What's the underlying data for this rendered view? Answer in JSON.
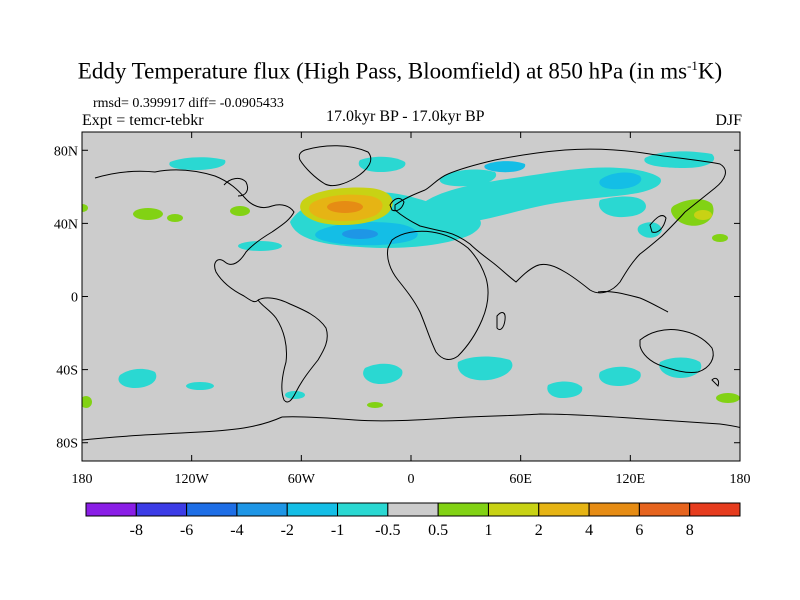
{
  "title": {
    "main": "Eddy Temperature flux (High Pass, Bloomfield) at 850 hPa (in ms",
    "sup": "-1",
    "end": "K)"
  },
  "stats": {
    "rmsd_text": "rmsd= 0.399917 diff= -0.0905433"
  },
  "expt_label": "Expt = temcr-tebkr",
  "period_label": "17.0kyr BP - 17.0kyr BP",
  "season_label": "DJF",
  "axes": {
    "y_ticks": [
      {
        "lat": 80,
        "label": "80N"
      },
      {
        "lat": 40,
        "label": "40N"
      },
      {
        "lat": 0,
        "label": "0"
      },
      {
        "lat": -40,
        "label": "40S"
      },
      {
        "lat": -80,
        "label": "80S"
      }
    ],
    "x_ticks": [
      {
        "lon": -180,
        "label": "180"
      },
      {
        "lon": -120,
        "label": "120W"
      },
      {
        "lon": -60,
        "label": "60W"
      },
      {
        "lon": 0,
        "label": "0"
      },
      {
        "lon": 60,
        "label": "60E"
      },
      {
        "lon": 120,
        "label": "120E"
      },
      {
        "lon": 180,
        "label": "180"
      }
    ]
  },
  "colorbar": {
    "colors": [
      "#8a1ee6",
      "#3c3ce6",
      "#1e6ee6",
      "#1e96e6",
      "#14bee6",
      "#2ad8d2",
      "#cccccc",
      "#82d214",
      "#c8d214",
      "#e6b414",
      "#e68c14",
      "#e6641e",
      "#e63c1e"
    ],
    "labels": [
      "-8",
      "-6",
      "-4",
      "-2",
      "-1",
      "-0.5",
      "0.5",
      "1",
      "2",
      "4",
      "6",
      "8"
    ]
  },
  "chart_data": {
    "type": "heatmap",
    "map": "world map, equidistant cylindrical projection",
    "variable": "Eddy Temperature flux (High Pass, Bloomfield)",
    "level": "850 hPa",
    "units": "ms-1K",
    "xlim": [
      -180,
      180
    ],
    "ylim": [
      -90,
      90
    ],
    "contour_levels": [
      -8,
      -6,
      -4,
      -2,
      -1,
      -0.5,
      0.5,
      1,
      2,
      4,
      6,
      8
    ],
    "background_value_range": [
      -0.5,
      0.5
    ],
    "features": [
      {
        "region": "Western North Atlantic",
        "lon": -45,
        "lat": 46,
        "value_range": [
          2,
          6
        ]
      },
      {
        "region": "Central North Atlantic",
        "lon": -30,
        "lat": 38,
        "value_range": [
          -2,
          -1
        ]
      },
      {
        "region": "Eurasia / Scandinavia band",
        "lon": 40,
        "lat": 57,
        "value_range": [
          -1,
          -0.5
        ]
      },
      {
        "region": "Greenland Sea",
        "lon": -15,
        "lat": 75,
        "value_range": [
          -1,
          -0.5
        ]
      },
      {
        "region": "Arctic (East Siberian)",
        "lon": 110,
        "lat": 78,
        "value_range": [
          -1,
          -0.5
        ]
      },
      {
        "region": "NW Pacific / Kamchatka",
        "lon": 155,
        "lat": 43,
        "value_range": [
          1,
          2
        ]
      },
      {
        "region": "North Pacific (east)",
        "lon": -160,
        "lat": 41,
        "value_range": [
          0.5,
          1
        ]
      },
      {
        "region": "South Atlantic",
        "lon": 5,
        "lat": -38,
        "value_range": [
          -1,
          -0.5
        ]
      },
      {
        "region": "South Pacific",
        "lon": -160,
        "lat": -43,
        "value_range": [
          -1,
          -0.5
        ]
      },
      {
        "region": "Southern Ocean (south of Australia)",
        "lon": 130,
        "lat": -43,
        "value_range": [
          -1,
          -0.5
        ]
      }
    ]
  }
}
